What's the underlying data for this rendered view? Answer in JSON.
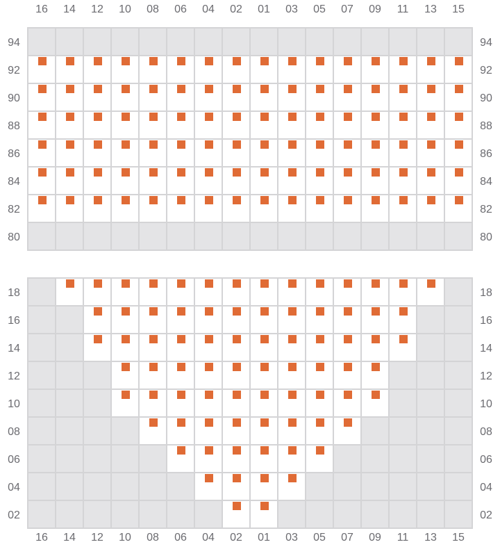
{
  "colors": {
    "seat": "#e06b35",
    "unavailable": "#e4e4e6",
    "available": "#ffffff",
    "grid_line": "#d4d4d6",
    "label": "#6b6b70"
  },
  "columns": [
    "16",
    "14",
    "12",
    "10",
    "08",
    "06",
    "04",
    "02",
    "01",
    "03",
    "05",
    "07",
    "09",
    "11",
    "13",
    "15"
  ],
  "sections": [
    {
      "rows": [
        {
          "label": "94",
          "seats": []
        },
        {
          "label": "92",
          "seats": [
            "16",
            "14",
            "12",
            "10",
            "08",
            "06",
            "04",
            "02",
            "01",
            "03",
            "05",
            "07",
            "09",
            "11",
            "13",
            "15"
          ]
        },
        {
          "label": "90",
          "seats": [
            "16",
            "14",
            "12",
            "10",
            "08",
            "06",
            "04",
            "02",
            "01",
            "03",
            "05",
            "07",
            "09",
            "11",
            "13",
            "15"
          ]
        },
        {
          "label": "88",
          "seats": [
            "16",
            "14",
            "12",
            "10",
            "08",
            "06",
            "04",
            "02",
            "01",
            "03",
            "05",
            "07",
            "09",
            "11",
            "13",
            "15"
          ]
        },
        {
          "label": "86",
          "seats": [
            "16",
            "14",
            "12",
            "10",
            "08",
            "06",
            "04",
            "02",
            "01",
            "03",
            "05",
            "07",
            "09",
            "11",
            "13",
            "15"
          ]
        },
        {
          "label": "84",
          "seats": [
            "16",
            "14",
            "12",
            "10",
            "08",
            "06",
            "04",
            "02",
            "01",
            "03",
            "05",
            "07",
            "09",
            "11",
            "13",
            "15"
          ]
        },
        {
          "label": "82",
          "seats": [
            "16",
            "14",
            "12",
            "10",
            "08",
            "06",
            "04",
            "02",
            "01",
            "03",
            "05",
            "07",
            "09",
            "11",
            "13",
            "15"
          ]
        },
        {
          "label": "80",
          "seats": []
        }
      ]
    },
    {
      "rows": [
        {
          "label": "18",
          "seats": [
            "14",
            "12",
            "10",
            "08",
            "06",
            "04",
            "02",
            "01",
            "03",
            "05",
            "07",
            "09",
            "11",
            "13"
          ]
        },
        {
          "label": "16",
          "seats": [
            "12",
            "10",
            "08",
            "06",
            "04",
            "02",
            "01",
            "03",
            "05",
            "07",
            "09",
            "11"
          ]
        },
        {
          "label": "14",
          "seats": [
            "12",
            "10",
            "08",
            "06",
            "04",
            "02",
            "01",
            "03",
            "05",
            "07",
            "09",
            "11"
          ]
        },
        {
          "label": "12",
          "seats": [
            "10",
            "08",
            "06",
            "04",
            "02",
            "01",
            "03",
            "05",
            "07",
            "09"
          ]
        },
        {
          "label": "10",
          "seats": [
            "10",
            "08",
            "06",
            "04",
            "02",
            "01",
            "03",
            "05",
            "07",
            "09"
          ]
        },
        {
          "label": "08",
          "seats": [
            "08",
            "06",
            "04",
            "02",
            "01",
            "03",
            "05",
            "07"
          ]
        },
        {
          "label": "06",
          "seats": [
            "06",
            "04",
            "02",
            "01",
            "03",
            "05"
          ]
        },
        {
          "label": "04",
          "seats": [
            "04",
            "02",
            "01",
            "03"
          ]
        },
        {
          "label": "02",
          "seats": [
            "02",
            "01"
          ]
        }
      ]
    }
  ]
}
